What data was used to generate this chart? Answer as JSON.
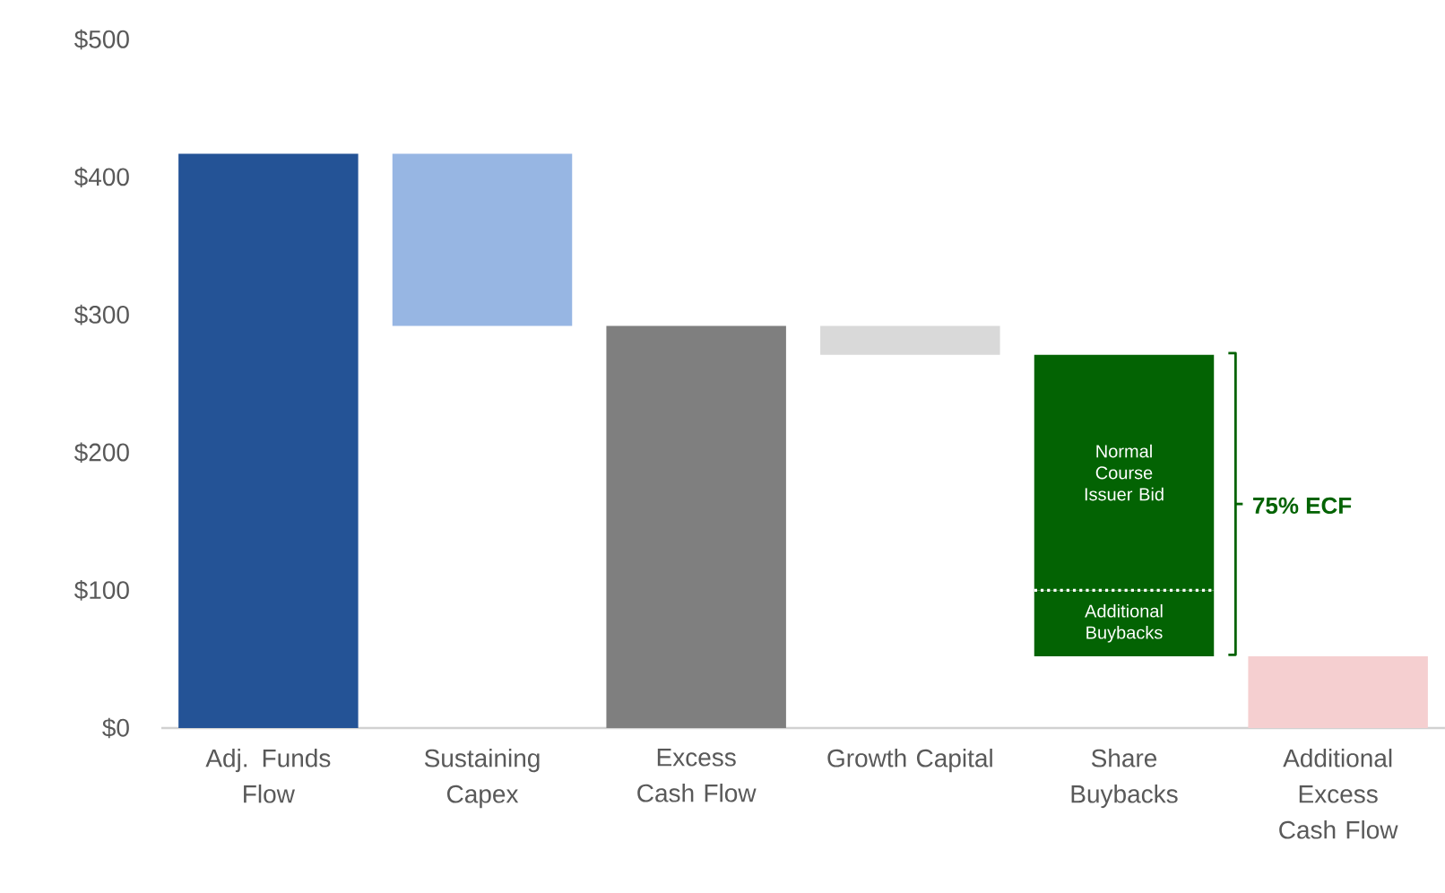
{
  "chart_data": {
    "type": "bar",
    "categories": [
      "Adj. Funds Flow",
      "Sustaining Capex",
      "Excess Cash Flow",
      "Growth Capital",
      "Share Buybacks",
      "Additional Excess Cash Flow"
    ],
    "series": [
      {
        "values": [
          417,
          125,
          292,
          21,
          48,
          52
        ],
        "base": [
          0,
          292,
          0,
          271,
          52,
          0
        ],
        "colors": [
          "#245396",
          "#97b6e3",
          "#7f7f7f",
          "#d9d9d9",
          "#036303",
          "#f5cfd0"
        ]
      },
      {
        "values": [
          null,
          null,
          null,
          null,
          171,
          null
        ],
        "base": [
          null,
          null,
          null,
          null,
          100,
          null
        ],
        "color": "#036303"
      }
    ],
    "ylim": [
      0,
      500
    ],
    "yticks": [
      {
        "value": 0,
        "label": "$0"
      },
      {
        "value": 100,
        "label": "$100"
      },
      {
        "value": 200,
        "label": "$200"
      },
      {
        "value": 300,
        "label": "$300"
      },
      {
        "value": 400,
        "label": "$400"
      },
      {
        "value": 500,
        "label": "$500"
      }
    ],
    "annotations": [
      "Normal Course Issuer Bid",
      "Additional Buybacks",
      "75% ECF"
    ]
  }
}
